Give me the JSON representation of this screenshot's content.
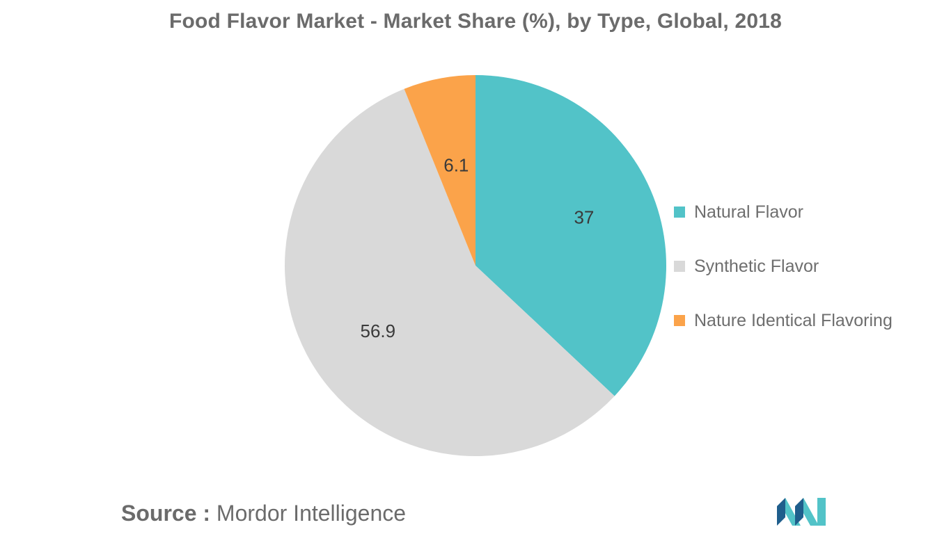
{
  "chart_data": {
    "type": "pie",
    "title": "Food Flavor Market - Market Share (%), by Type, Global, 2018",
    "slices": [
      {
        "label": "Natural Flavor",
        "value": 37,
        "display": "37",
        "color": "#52c3c8"
      },
      {
        "label": "Synthetic Flavor",
        "value": 56.9,
        "display": "56.9",
        "color": "#d9d9d9"
      },
      {
        "label": "Nature Identical Flavoring",
        "value": 6.1,
        "display": "6.1",
        "color": "#fba34a"
      }
    ],
    "start_angle": "12 o'clock",
    "direction": "clockwise",
    "legend_position": "right"
  },
  "source": {
    "label": "Source :",
    "text": "Mordor Intelligence"
  },
  "logo": {
    "icon": "mordor-intelligence-logo",
    "colors": [
      "#1f5e8c",
      "#52c3c8"
    ]
  }
}
